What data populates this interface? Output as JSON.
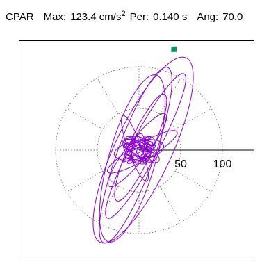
{
  "header": {
    "channel": "CPAR",
    "max_label": "Max:",
    "max_value": "123.4",
    "max_unit": "cm/s",
    "max_unit_exp": "2",
    "per_label": "Per:",
    "per_value": "0.140 s",
    "ang_label": "Ang:",
    "ang_value": "70.0"
  },
  "chart_data": {
    "type": "line",
    "title": "",
    "polar_grid": {
      "ring_radii": [
        50,
        100
      ],
      "spoke_angle_step_deg": 30,
      "grid_style": "dotted"
    },
    "axis": {
      "tick_labels": [
        "50",
        "100"
      ],
      "tick_values": [
        50,
        100
      ],
      "direction": "positive x"
    },
    "max_marker": {
      "x": 42,
      "y": 121,
      "color": "#0f8f68"
    },
    "trace_color": "#8a00d4",
    "series": [
      {
        "loops": [
          {
            "cx": 5,
            "cy": 0,
            "a": 122,
            "b": 34,
            "angle_deg": 65
          },
          {
            "cx": -4,
            "cy": -6,
            "a": 112,
            "b": 22,
            "angle_deg": 70
          },
          {
            "cx": 8,
            "cy": 5,
            "a": 98,
            "b": 16,
            "angle_deg": 62
          },
          {
            "cx": -8,
            "cy": -10,
            "a": 104,
            "b": 28,
            "angle_deg": 74
          },
          {
            "cx": 2,
            "cy": 3,
            "a": 70,
            "b": 14,
            "angle_deg": 66
          },
          {
            "cx": -2,
            "cy": 0,
            "a": 55,
            "b": 12,
            "angle_deg": 52
          },
          {
            "cx": 4,
            "cy": -2,
            "a": 48,
            "b": 10,
            "angle_deg": 30
          },
          {
            "cx": -5,
            "cy": 2,
            "a": 42,
            "b": 8,
            "angle_deg": 110
          },
          {
            "cx": 0,
            "cy": 0,
            "a": 30,
            "b": 12,
            "angle_deg": 10
          },
          {
            "cx": 3,
            "cy": -1,
            "a": 24,
            "b": 9,
            "angle_deg": 150
          },
          {
            "cx": -1,
            "cy": 2,
            "a": 18,
            "b": 7,
            "angle_deg": 80
          }
        ]
      }
    ]
  }
}
